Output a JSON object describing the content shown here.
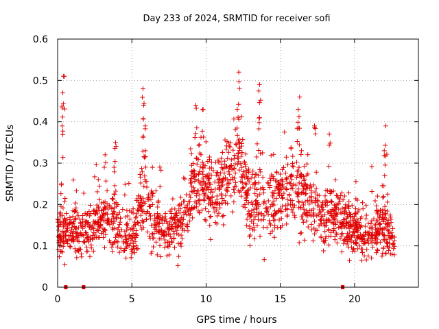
{
  "chart_data": {
    "type": "scatter",
    "title": "Day 233 of 2024, SRMTID for receiver sofi",
    "xlabel": "GPS time / hours",
    "ylabel": "SRMTID / TECUs",
    "xlim": [
      0,
      24.3
    ],
    "ylim": [
      0,
      0.6
    ],
    "xticks": [
      0,
      5,
      10,
      15,
      20
    ],
    "yticks": [
      0,
      0.1,
      0.2,
      0.3,
      0.4,
      0.5,
      0.6
    ],
    "grid": true,
    "marker": "+",
    "color": "#e00000",
    "data_gap_markers_hours": [
      0.55,
      1.75,
      19.2
    ],
    "series_note": "dense scatter of SRMTID values across the day, 0.03 to 0.52 TECUs",
    "profile": [
      {
        "x": 0.0,
        "mean": 0.13,
        "spread": 0.05,
        "bursts": [
          [
            0.3,
            0.39
          ],
          [
            0.35,
            0.47
          ],
          [
            0.4,
            0.51
          ],
          [
            0.25,
            0.25
          ]
        ]
      },
      {
        "x": 1.0,
        "mean": 0.14,
        "spread": 0.04,
        "bursts": []
      },
      {
        "x": 2.0,
        "mean": 0.13,
        "spread": 0.04,
        "bursts": []
      },
      {
        "x": 3.0,
        "mean": 0.16,
        "spread": 0.05,
        "bursts": [
          [
            3.2,
            0.32
          ]
        ]
      },
      {
        "x": 3.8,
        "mean": 0.17,
        "spread": 0.05,
        "bursts": [
          [
            3.9,
            0.35
          ],
          [
            3.8,
            0.29
          ]
        ]
      },
      {
        "x": 4.5,
        "mean": 0.12,
        "spread": 0.04,
        "bursts": []
      },
      {
        "x": 5.2,
        "mean": 0.13,
        "spread": 0.04,
        "bursts": []
      },
      {
        "x": 5.8,
        "mean": 0.24,
        "spread": 0.07,
        "bursts": [
          [
            5.75,
            0.48
          ],
          [
            5.8,
            0.44
          ],
          [
            5.9,
            0.39
          ]
        ]
      },
      {
        "x": 6.5,
        "mean": 0.15,
        "spread": 0.05,
        "bursts": []
      },
      {
        "x": 7.5,
        "mean": 0.13,
        "spread": 0.04,
        "bursts": []
      },
      {
        "x": 8.5,
        "mean": 0.16,
        "spread": 0.05,
        "bursts": []
      },
      {
        "x": 9.3,
        "mean": 0.27,
        "spread": 0.07,
        "bursts": [
          [
            9.3,
            0.44
          ],
          [
            9.8,
            0.43
          ]
        ]
      },
      {
        "x": 10.5,
        "mean": 0.22,
        "spread": 0.06,
        "bursts": []
      },
      {
        "x": 11.5,
        "mean": 0.27,
        "spread": 0.06,
        "bursts": []
      },
      {
        "x": 12.2,
        "mean": 0.31,
        "spread": 0.07,
        "bursts": [
          [
            12.2,
            0.52
          ],
          [
            12.1,
            0.43
          ]
        ]
      },
      {
        "x": 13.0,
        "mean": 0.2,
        "spread": 0.06,
        "bursts": []
      },
      {
        "x": 13.6,
        "mean": 0.22,
        "spread": 0.07,
        "bursts": [
          [
            13.6,
            0.49
          ],
          [
            13.6,
            0.41
          ]
        ]
      },
      {
        "x": 14.5,
        "mean": 0.2,
        "spread": 0.06,
        "bursts": []
      },
      {
        "x": 15.5,
        "mean": 0.25,
        "spread": 0.06,
        "bursts": []
      },
      {
        "x": 16.3,
        "mean": 0.24,
        "spread": 0.07,
        "bursts": [
          [
            16.3,
            0.46
          ],
          [
            16.2,
            0.43
          ]
        ]
      },
      {
        "x": 17.0,
        "mean": 0.19,
        "spread": 0.05,
        "bursts": [
          [
            17.3,
            0.39
          ]
        ]
      },
      {
        "x": 18.0,
        "mean": 0.18,
        "spread": 0.05,
        "bursts": [
          [
            18.3,
            0.37
          ]
        ]
      },
      {
        "x": 19.0,
        "mean": 0.16,
        "spread": 0.05,
        "bursts": []
      },
      {
        "x": 20.0,
        "mean": 0.14,
        "spread": 0.04,
        "bursts": []
      },
      {
        "x": 21.0,
        "mean": 0.12,
        "spread": 0.04,
        "bursts": []
      },
      {
        "x": 22.0,
        "mean": 0.16,
        "spread": 0.06,
        "bursts": [
          [
            22.1,
            0.39
          ],
          [
            22.0,
            0.33
          ]
        ]
      },
      {
        "x": 22.7,
        "mean": 0.1,
        "spread": 0.03,
        "bursts": []
      }
    ],
    "samples_per_hour": 80
  }
}
